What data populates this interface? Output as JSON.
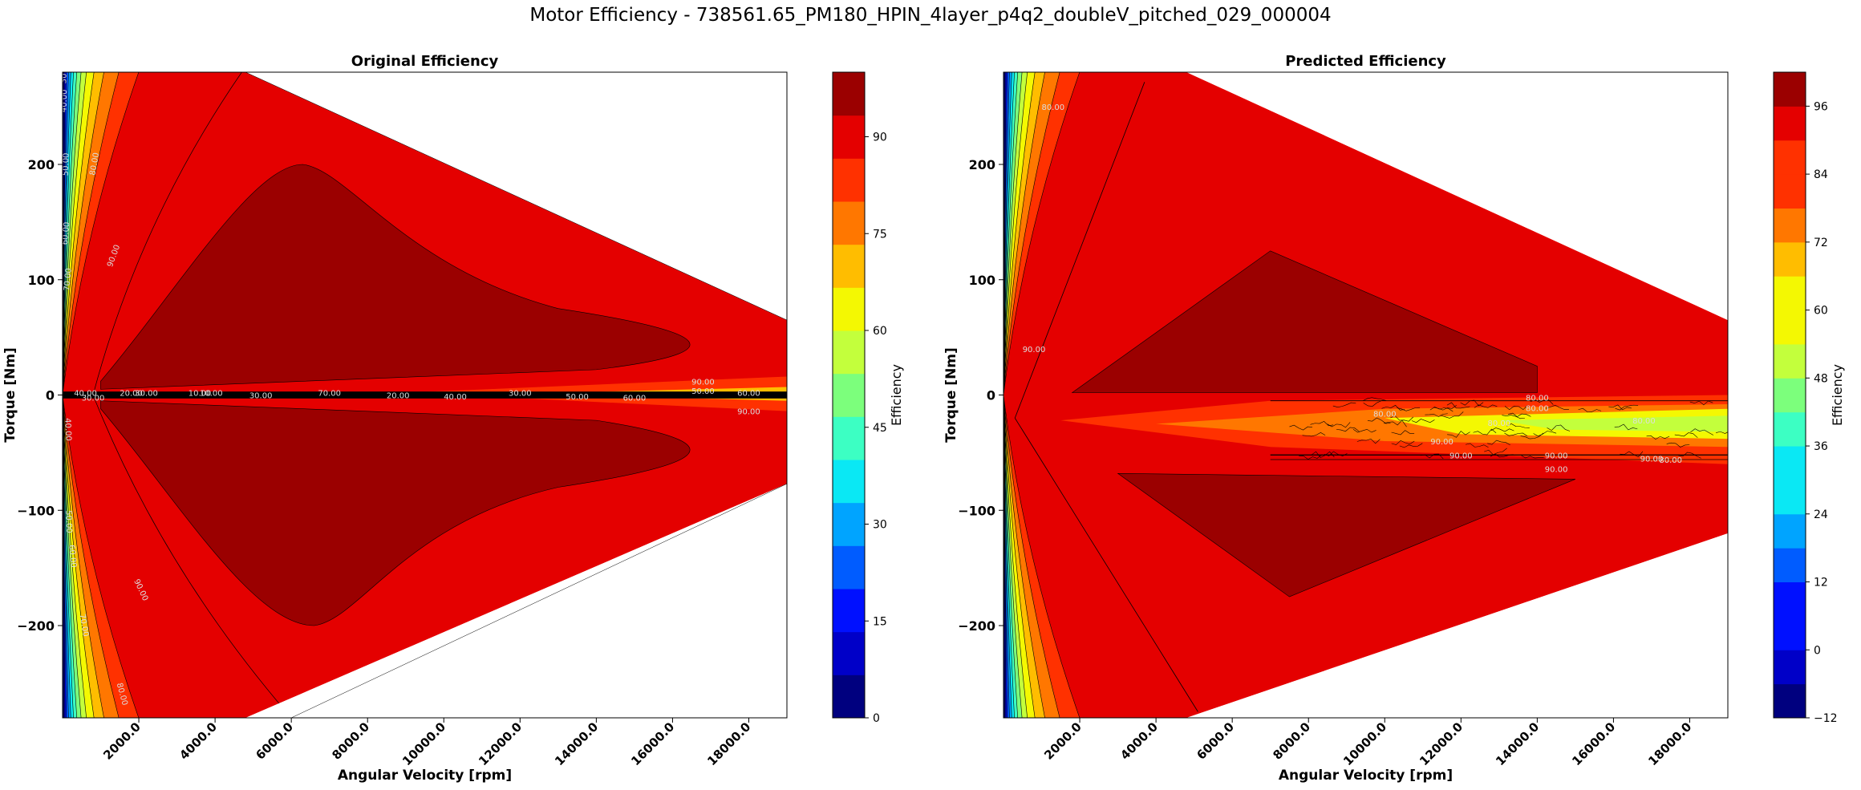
{
  "figure": {
    "suptitle": "Motor Efficiency - 738561.65_PM180_HPIN_4layer_p4q2_doubleV_pitched_029_000004"
  },
  "colors": {
    "jet": [
      "#00007f",
      "#0000c8",
      "#0010ff",
      "#005cff",
      "#00a4ff",
      "#0ae8f4",
      "#3cffc3",
      "#7cff7c",
      "#c3ff3c",
      "#f4f802",
      "#ffbd00",
      "#ff7700",
      "#ff3100",
      "#e40000",
      "#9b0000"
    ],
    "contour_line": "#000000",
    "label_text": "#dddddd"
  },
  "chart_data": [
    {
      "type": "contour",
      "title": "Original Efficiency",
      "xlabel": "Angular Velocity [rpm]",
      "ylabel": "Torque [Nm]",
      "xlim": [
        0,
        19000
      ],
      "ylim": [
        -280,
        280
      ],
      "x_ticks": [
        "2000.0",
        "4000.0",
        "6000.0",
        "8000.0",
        "10000.0",
        "12000.0",
        "14000.0",
        "16000.0",
        "18000.0"
      ],
      "x_tick_values": [
        2000,
        4000,
        6000,
        8000,
        10000,
        12000,
        14000,
        16000,
        18000
      ],
      "y_tick_values": [
        -200,
        -100,
        0,
        100,
        200
      ],
      "y_tick_labels": [
        "−200",
        "−100",
        "0",
        "100",
        "200"
      ],
      "colorbar": {
        "label": "Efficiency",
        "min": 0,
        "max": 100,
        "ticks": [
          0,
          15,
          30,
          45,
          60,
          75,
          90
        ],
        "levels": 15
      },
      "operating_envelope": {
        "base_speed_rpm": 4800,
        "max_torque_nm": 280,
        "torque_at_max_speed_pos_nm": 65,
        "torque_at_max_speed_neg_nm": -77
      },
      "peak_region": {
        "speed": [
          2000,
          4000,
          6500,
          10000,
          14000,
          17000,
          16000,
          10000,
          6500,
          4000,
          2000
        ],
        "torque": [
          60,
          150,
          200,
          140,
          80,
          45,
          25,
          22,
          20,
          18,
          15
        ]
      },
      "zero_line_labels": [
        "40.00",
        "30.00",
        "20.00",
        "30.00",
        "10.00",
        "10.00",
        "30.00",
        "70.00",
        "20.00",
        "40.00",
        "30.00",
        "50.00",
        "60.00",
        "50.00",
        "60.00",
        "90.00",
        "90.00"
      ],
      "contour_labels": [
        "90.00",
        "80.00",
        "70.00",
        "60.00",
        "50.00",
        "40.00",
        "30.00",
        "90.00",
        "80.00",
        "70.00",
        "60.00",
        "50.00",
        "40.00"
      ]
    },
    {
      "type": "contour",
      "title": "Predicted Efficiency",
      "xlabel": "Angular Velocity [rpm]",
      "ylabel": "Torque [Nm]",
      "xlim": [
        0,
        19000
      ],
      "ylim": [
        -280,
        280
      ],
      "x_ticks": [
        "2000.0",
        "4000.0",
        "6000.0",
        "8000.0",
        "10000.0",
        "12000.0",
        "14000.0",
        "16000.0",
        "18000.0"
      ],
      "x_tick_values": [
        2000,
        4000,
        6000,
        8000,
        10000,
        12000,
        14000,
        16000,
        18000
      ],
      "y_tick_values": [
        -200,
        -100,
        0,
        100,
        200
      ],
      "y_tick_labels": [
        "−200",
        "−100",
        "0",
        "100",
        "200"
      ],
      "colorbar": {
        "label": "Efficiency",
        "min": -12,
        "max": 102,
        "ticks": [
          -12,
          0,
          12,
          24,
          36,
          48,
          60,
          72,
          84,
          96
        ],
        "levels": 19
      },
      "operating_envelope": {
        "base_speed_rpm": 4800,
        "max_torque_nm": 280,
        "torque_at_max_speed_pos_nm": 65,
        "torque_at_max_speed_neg_nm": -120
      },
      "noise_band": {
        "speed_from": 7000,
        "speed_to": 19000,
        "torque_from": -60,
        "torque_to": 0
      },
      "contour_labels": [
        "80.00",
        "80.00",
        "80.00",
        "80.00",
        "80.00",
        "90.00",
        "90.00",
        "90.00",
        "90.00",
        "90.00",
        "80.00",
        "90.00",
        "80.00"
      ]
    }
  ]
}
